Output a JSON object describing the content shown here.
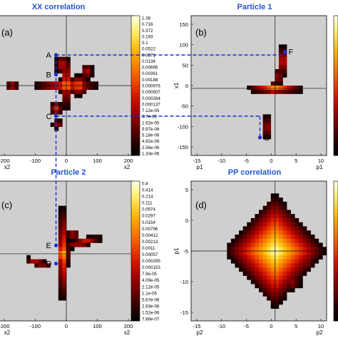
{
  "figure": {
    "panel_titles": {
      "a": "XX correlation",
      "b": "Particle 1",
      "c": "Particle 2",
      "d": "PP correlation"
    }
  },
  "colors": {
    "title": "#2255cc",
    "background": "#cfcfcf",
    "axes": "#000000",
    "guide": "#1a2fd0",
    "marker": "#1a2fd0",
    "colormap": [
      "#000000",
      "#2a0000",
      "#6a0000",
      "#a80000",
      "#d81a00",
      "#f05000",
      "#f88800",
      "#fcbc10",
      "#feea60",
      "#ffffd8"
    ]
  },
  "chart_data": [
    {
      "id": "a",
      "type": "heatmap",
      "title": "XX correlation",
      "panel_label": "(a)",
      "xlabel": "x2",
      "ylabel": "",
      "x_ticks": [
        "-200",
        "-100",
        "0",
        "100",
        "200"
      ],
      "y_ticks": [],
      "xlim": [
        -230,
        230
      ],
      "ylim": [
        -160,
        160
      ],
      "colorbar": [
        "1.38",
        "0.716",
        "0.372",
        "0.193",
        "0.1",
        "0.0522",
        "0.0271",
        "0.0134",
        "0.00695",
        "0.00361",
        "0.00188",
        "0.000976",
        "0.000507",
        "0.000264",
        "0.000137",
        "7.12e-05",
        "3.7e-05",
        "1.92e-05",
        "9.97e-06",
        "5.18e-06",
        "4.92e-06",
        "2.56e-06",
        "1.33e-06"
      ],
      "markers": [
        {
          "label": "A",
          "x": -35,
          "y": 70
        },
        {
          "label": "B",
          "x": -35,
          "y": 25
        },
        {
          "label": "C",
          "x": -35,
          "y": -70
        }
      ]
    },
    {
      "id": "b",
      "type": "heatmap",
      "title": "Particle 1",
      "panel_label": "(b)",
      "xlabel": "p1",
      "ylabel": "x1",
      "x_ticks": [
        "-15",
        "-10",
        "-5",
        "0",
        "5",
        "10"
      ],
      "y_ticks": [
        "150",
        "100",
        "50",
        "0",
        "-50",
        "-100",
        "-150"
      ],
      "xlim": [
        -15,
        10
      ],
      "ylim": [
        -175,
        175
      ],
      "markers": [
        {
          "label": "F",
          "x": 2.3,
          "y": 85
        },
        {
          "label": "G",
          "x": -2.3,
          "y": -130
        }
      ]
    },
    {
      "id": "c",
      "type": "heatmap",
      "title": "Particle 2",
      "panel_label": "(c)",
      "xlabel": "x2",
      "ylabel": "",
      "x_ticks": [
        "-200",
        "-100",
        "0",
        "100",
        "200"
      ],
      "y_ticks": [],
      "xlim": [
        -230,
        230
      ],
      "ylim": [
        -10,
        10
      ],
      "colorbar": [
        "0.8",
        "0.414",
        "0.214",
        "0.111",
        "0.0574",
        "0.0297",
        "0.0154",
        "0.00796",
        "0.00412",
        "0.00213",
        "0.0011",
        "0.00057",
        "0.000295",
        "0.000153",
        "7.9e-05",
        "4.09e-05",
        "2.12e-05",
        "1.1e-05",
        "5.67e-06",
        "2.93e-06",
        "1.52e-06",
        "7.86e-07"
      ],
      "markers": [
        {
          "label": "E",
          "x": -35,
          "y": 0.8
        },
        {
          "label": "D",
          "x": -35,
          "y": -1.8
        }
      ]
    },
    {
      "id": "d",
      "type": "heatmap",
      "title": "PP correlation",
      "panel_label": "(d)",
      "xlabel": "p2",
      "ylabel": "p1",
      "x_ticks": [
        "-15",
        "-10",
        "-5",
        "0",
        "5",
        "10"
      ],
      "y_ticks": [
        "5",
        "0",
        "-5",
        "-10",
        "-15"
      ],
      "xlim": [
        -15,
        10
      ],
      "ylim": [
        -15,
        10
      ],
      "markers": []
    }
  ]
}
